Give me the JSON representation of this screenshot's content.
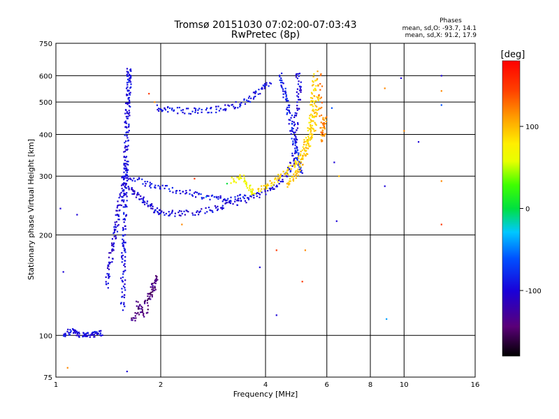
{
  "chart_data": {
    "type": "scatter",
    "title": "Tromsø 20151030 07:02:00-07:03:43",
    "subtitle": "RwPretec (8p)",
    "xlabel": "Frequency [MHz]",
    "ylabel": "Stationary phase Virtual Height [km]",
    "x_scale": "log",
    "y_scale": "log",
    "xlim": [
      1,
      16
    ],
    "ylim": [
      75,
      750
    ],
    "x_ticks": [
      1,
      2,
      4,
      6,
      8,
      10,
      16
    ],
    "y_ticks": [
      75,
      100,
      200,
      300,
      400,
      500,
      600,
      750
    ],
    "grid": true,
    "phases_box": {
      "heading": "Phases",
      "line_o": "mean, sd,O: -93.7, 14.1",
      "line_x": "mean, sd,X:  91.2, 17.9"
    },
    "colorbar": {
      "label": "[deg]",
      "range": [
        -180,
        180
      ],
      "ticks": [
        100,
        0,
        -100
      ]
    },
    "phase_groups": {
      "o_mode_deg": -93.7,
      "x_mode_deg": 91.2
    },
    "traces": [
      {
        "phase": -95,
        "points": [
          [
            1.55,
            120
          ],
          [
            1.56,
            140
          ],
          [
            1.56,
            160
          ],
          [
            1.57,
            180
          ],
          [
            1.57,
            200
          ],
          [
            1.57,
            230
          ],
          [
            1.58,
            260
          ],
          [
            1.58,
            290
          ],
          [
            1.59,
            320
          ],
          [
            1.59,
            360
          ],
          [
            1.6,
            400
          ],
          [
            1.6,
            440
          ],
          [
            1.61,
            480
          ],
          [
            1.61,
            520
          ],
          [
            1.62,
            560
          ],
          [
            1.62,
            600
          ],
          [
            1.62,
            630
          ]
        ]
      },
      {
        "phase": -100,
        "points": [
          [
            1.4,
            140
          ],
          [
            1.42,
            160
          ],
          [
            1.45,
            180
          ],
          [
            1.48,
            200
          ],
          [
            1.5,
            220
          ],
          [
            1.52,
            245
          ],
          [
            1.55,
            270
          ],
          [
            1.57,
            300
          ],
          [
            1.6,
            330
          ]
        ]
      },
      {
        "phase": -98,
        "points": [
          [
            1.6,
            280
          ],
          [
            1.7,
            265
          ],
          [
            1.8,
            250
          ],
          [
            1.9,
            240
          ],
          [
            2.0,
            234
          ],
          [
            2.2,
            232
          ],
          [
            2.5,
            234
          ],
          [
            2.8,
            238
          ],
          [
            3.1,
            245
          ],
          [
            3.5,
            255
          ],
          [
            3.9,
            265
          ],
          [
            4.3,
            280
          ],
          [
            4.6,
            305
          ],
          [
            4.8,
            330
          ],
          [
            4.85,
            380
          ],
          [
            4.9,
            440
          ],
          [
            4.95,
            500
          ],
          [
            5.0,
            560
          ],
          [
            4.95,
            620
          ]
        ]
      },
      {
        "phase": -90,
        "points": [
          [
            1.6,
            300
          ],
          [
            1.8,
            285
          ],
          [
            2.0,
            278
          ],
          [
            2.3,
            270
          ],
          [
            2.6,
            262
          ],
          [
            2.9,
            258
          ],
          [
            3.2,
            256
          ],
          [
            3.5,
            260
          ]
        ]
      },
      {
        "phase": -92,
        "points": [
          [
            1.95,
            480
          ],
          [
            2.1,
            475
          ],
          [
            2.4,
            470
          ],
          [
            2.7,
            472
          ],
          [
            3.0,
            478
          ],
          [
            3.3,
            490
          ],
          [
            3.6,
            510
          ],
          [
            3.9,
            540
          ],
          [
            4.1,
            580
          ]
        ]
      },
      {
        "phase": -95,
        "points": [
          [
            1.05,
            100
          ],
          [
            1.1,
            103
          ],
          [
            1.15,
            101
          ],
          [
            1.2,
            100
          ],
          [
            1.25,
            100
          ],
          [
            1.3,
            101
          ],
          [
            1.35,
            102
          ]
        ]
      },
      {
        "phase": -140,
        "points": [
          [
            1.65,
            110
          ],
          [
            1.75,
            120
          ],
          [
            1.85,
            130
          ],
          [
            1.9,
            140
          ],
          [
            1.95,
            150
          ],
          [
            1.8,
            115
          ],
          [
            1.7,
            125
          ]
        ]
      },
      {
        "phase": -85,
        "points": [
          [
            4.4,
            600
          ],
          [
            4.5,
            550
          ],
          [
            4.6,
            500
          ],
          [
            4.7,
            450
          ],
          [
            4.8,
            400
          ],
          [
            4.9,
            360
          ],
          [
            5.0,
            330
          ],
          [
            5.1,
            310
          ]
        ]
      },
      {
        "phase": 90,
        "points": [
          [
            3.8,
            270
          ],
          [
            4.1,
            282
          ],
          [
            4.4,
            298
          ],
          [
            4.7,
            315
          ],
          [
            5.0,
            340
          ],
          [
            5.2,
            370
          ],
          [
            5.3,
            400
          ],
          [
            5.4,
            440
          ],
          [
            5.45,
            490
          ],
          [
            5.5,
            540
          ],
          [
            5.55,
            600
          ]
        ]
      },
      {
        "phase": 95,
        "points": [
          [
            4.6,
            280
          ],
          [
            4.8,
            295
          ],
          [
            5.0,
            320
          ],
          [
            5.2,
            350
          ],
          [
            5.35,
            380
          ],
          [
            5.5,
            420
          ],
          [
            5.6,
            470
          ],
          [
            5.65,
            520
          ]
        ]
      },
      {
        "phase": 70,
        "points": [
          [
            3.2,
            290
          ],
          [
            3.4,
            300
          ],
          [
            3.6,
            275
          ],
          [
            3.7,
            268
          ]
        ]
      },
      {
        "phase": 120,
        "points": [
          [
            5.8,
            400
          ],
          [
            5.9,
            450
          ],
          [
            5.85,
            380
          ],
          [
            5.75,
            500
          ],
          [
            5.7,
            620
          ]
        ]
      }
    ],
    "sparse_points": [
      {
        "x": 1.08,
        "y": 80,
        "phase": 120
      },
      {
        "x": 1.03,
        "y": 240,
        "phase": -100
      },
      {
        "x": 1.15,
        "y": 230,
        "phase": -100
      },
      {
        "x": 1.05,
        "y": 155,
        "phase": -100
      },
      {
        "x": 1.6,
        "y": 78,
        "phase": -100
      },
      {
        "x": 6.2,
        "y": 480,
        "phase": -60
      },
      {
        "x": 6.3,
        "y": 330,
        "phase": -100
      },
      {
        "x": 6.5,
        "y": 300,
        "phase": 100
      },
      {
        "x": 6.4,
        "y": 220,
        "phase": -100
      },
      {
        "x": 4.3,
        "y": 180,
        "phase": 150
      },
      {
        "x": 5.1,
        "y": 145,
        "phase": 150
      },
      {
        "x": 3.85,
        "y": 160,
        "phase": -100
      },
      {
        "x": 4.3,
        "y": 115,
        "phase": -100
      },
      {
        "x": 5.2,
        "y": 180,
        "phase": 120
      },
      {
        "x": 8.8,
        "y": 550,
        "phase": 120
      },
      {
        "x": 8.8,
        "y": 280,
        "phase": -100
      },
      {
        "x": 8.9,
        "y": 112,
        "phase": -40
      },
      {
        "x": 9.8,
        "y": 590,
        "phase": -100
      },
      {
        "x": 10,
        "y": 410,
        "phase": 120
      },
      {
        "x": 11,
        "y": 380,
        "phase": -100
      },
      {
        "x": 12.8,
        "y": 600,
        "phase": -100
      },
      {
        "x": 12.8,
        "y": 540,
        "phase": 120
      },
      {
        "x": 12.8,
        "y": 490,
        "phase": -60
      },
      {
        "x": 12.8,
        "y": 290,
        "phase": 120
      },
      {
        "x": 12.8,
        "y": 215,
        "phase": 150
      },
      {
        "x": 2.5,
        "y": 295,
        "phase": 150
      },
      {
        "x": 2.3,
        "y": 215,
        "phase": 120
      },
      {
        "x": 1.92,
        "y": 500,
        "phase": 120
      },
      {
        "x": 1.85,
        "y": 530,
        "phase": 150
      },
      {
        "x": 3.1,
        "y": 285,
        "phase": 0
      },
      {
        "x": 2.7,
        "y": 260,
        "phase": -40
      }
    ]
  }
}
